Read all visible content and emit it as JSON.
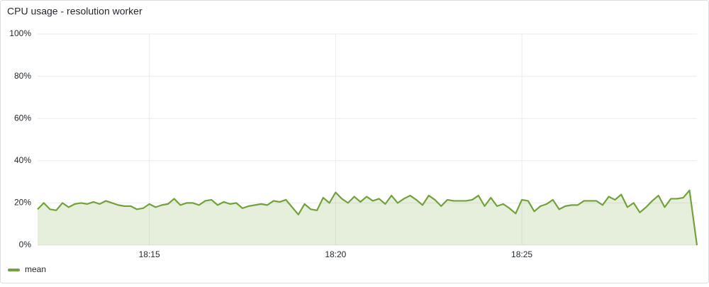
{
  "chart_data": {
    "type": "line",
    "title": "CPU usage - resolution worker",
    "x": [
      0,
      10,
      20,
      30,
      40,
      50,
      60,
      70,
      80,
      90,
      100,
      110,
      120,
      130,
      140,
      150,
      160,
      170,
      180,
      190,
      200,
      210,
      220,
      230,
      240,
      250,
      260,
      270,
      280,
      290,
      300,
      310,
      320,
      330,
      340,
      350,
      360,
      370,
      380,
      390,
      400,
      410,
      420,
      430,
      440,
      450,
      460,
      470,
      480,
      490,
      500,
      510,
      520,
      530,
      540,
      550,
      560,
      570,
      580,
      590,
      600,
      610,
      620,
      630,
      640,
      650,
      660,
      670,
      680,
      690,
      700,
      710,
      720,
      730,
      740,
      750,
      760,
      770,
      780,
      790,
      800,
      810,
      820,
      830,
      840,
      850,
      860,
      870,
      880,
      890,
      900,
      910,
      920,
      930,
      940,
      950,
      960,
      970,
      980,
      990,
      1000,
      1010,
      1020,
      1030,
      1040,
      1050,
      1062
    ],
    "xlim": [
      0,
      1062
    ],
    "xticks": [
      {
        "value": 180,
        "label": "18:15"
      },
      {
        "value": 480,
        "label": "18:20"
      },
      {
        "value": 780,
        "label": "18:25"
      }
    ],
    "series": [
      {
        "name": "mean",
        "color": "#73a13c",
        "values": [
          17,
          20,
          17,
          16.5,
          20,
          18,
          19.5,
          20,
          19.5,
          20.5,
          19.5,
          21,
          20,
          19,
          18.5,
          18.5,
          17,
          17.5,
          19.5,
          18,
          19,
          19.5,
          22,
          19,
          20,
          20,
          19,
          21,
          21.5,
          19,
          20.5,
          19.5,
          20,
          17.5,
          18.5,
          19,
          19.5,
          19,
          21,
          20.5,
          21.5,
          18,
          14.5,
          19.5,
          17,
          16.5,
          22.5,
          20,
          25,
          22,
          20,
          23,
          20.5,
          23,
          21,
          22,
          19.5,
          23.5,
          20,
          22,
          23.5,
          21.5,
          19,
          23.5,
          21.5,
          18.5,
          21.5,
          21,
          21,
          21,
          21.5,
          23.5,
          18.5,
          22.5,
          18.5,
          19.5,
          17.5,
          15,
          21.5,
          21,
          16,
          18.5,
          19.5,
          21.5,
          17,
          18.5,
          19,
          19,
          21,
          21,
          21,
          19,
          23,
          21.5,
          24,
          18,
          20,
          15.5,
          18,
          21,
          23.5,
          18,
          22,
          22,
          22.5,
          26,
          0
        ]
      }
    ],
    "ylim": [
      0,
      100
    ],
    "yticks": [
      {
        "value": 0,
        "label": "0%"
      },
      {
        "value": 20,
        "label": "20%"
      },
      {
        "value": 40,
        "label": "40%"
      },
      {
        "value": 60,
        "label": "60%"
      },
      {
        "value": 80,
        "label": "80%"
      },
      {
        "value": 100,
        "label": "100%"
      }
    ],
    "grid": true,
    "legend": "bottom-left"
  }
}
